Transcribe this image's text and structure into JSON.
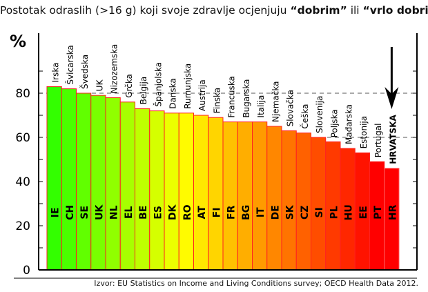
{
  "title_parts": [
    "Postotak odraslih (>16 g) koji svoje zdravlje ocjenjuju ",
    "“dobrim”",
    " ili ",
    "“vrlo dobrim”"
  ],
  "source": "Izvor: EU Statistics on Income and Living Conditions survey; OECD Health Data 2012.",
  "chart_data": {
    "type": "bar",
    "ylabel": "%",
    "ylim": [
      0,
      100
    ],
    "yticks": [
      0,
      20,
      40,
      60,
      80
    ],
    "grid": "dashed horizontal at 60 and 80",
    "categories": [
      "Irska",
      "Švicarska",
      "Švedska",
      "UK",
      "Nizozemska",
      "Grčka",
      "Belgija",
      "Španjolska",
      "Danska",
      "Rumunjska",
      "Austrija",
      "Finska",
      "Francuska",
      "Bugarska",
      "Italija",
      "Njemačka",
      "Slovačka",
      "Češka",
      "Slovenija",
      "Poljska",
      "Mađarska",
      "Estonija",
      "Portugal",
      "HRVATSKA"
    ],
    "codes": [
      "IE",
      "CH",
      "SE",
      "UK",
      "NL",
      "EL",
      "BE",
      "ES",
      "DK",
      "RO",
      "AT",
      "FI",
      "FR",
      "BG",
      "IT",
      "DE",
      "SK",
      "CZ",
      "SI",
      "PL",
      "HU",
      "EE",
      "PT",
      "HR"
    ],
    "values": [
      83,
      82,
      80,
      79,
      78,
      76,
      73,
      72,
      71,
      71,
      70,
      69,
      67,
      67,
      67,
      65,
      63,
      62,
      60,
      58,
      55,
      53,
      49,
      46
    ],
    "highlight": "HRVATSKA",
    "colors": {
      "start": "#33ff00",
      "mid": "#ffff00",
      "end": "#ff0000",
      "outline": "#ff2020"
    }
  }
}
